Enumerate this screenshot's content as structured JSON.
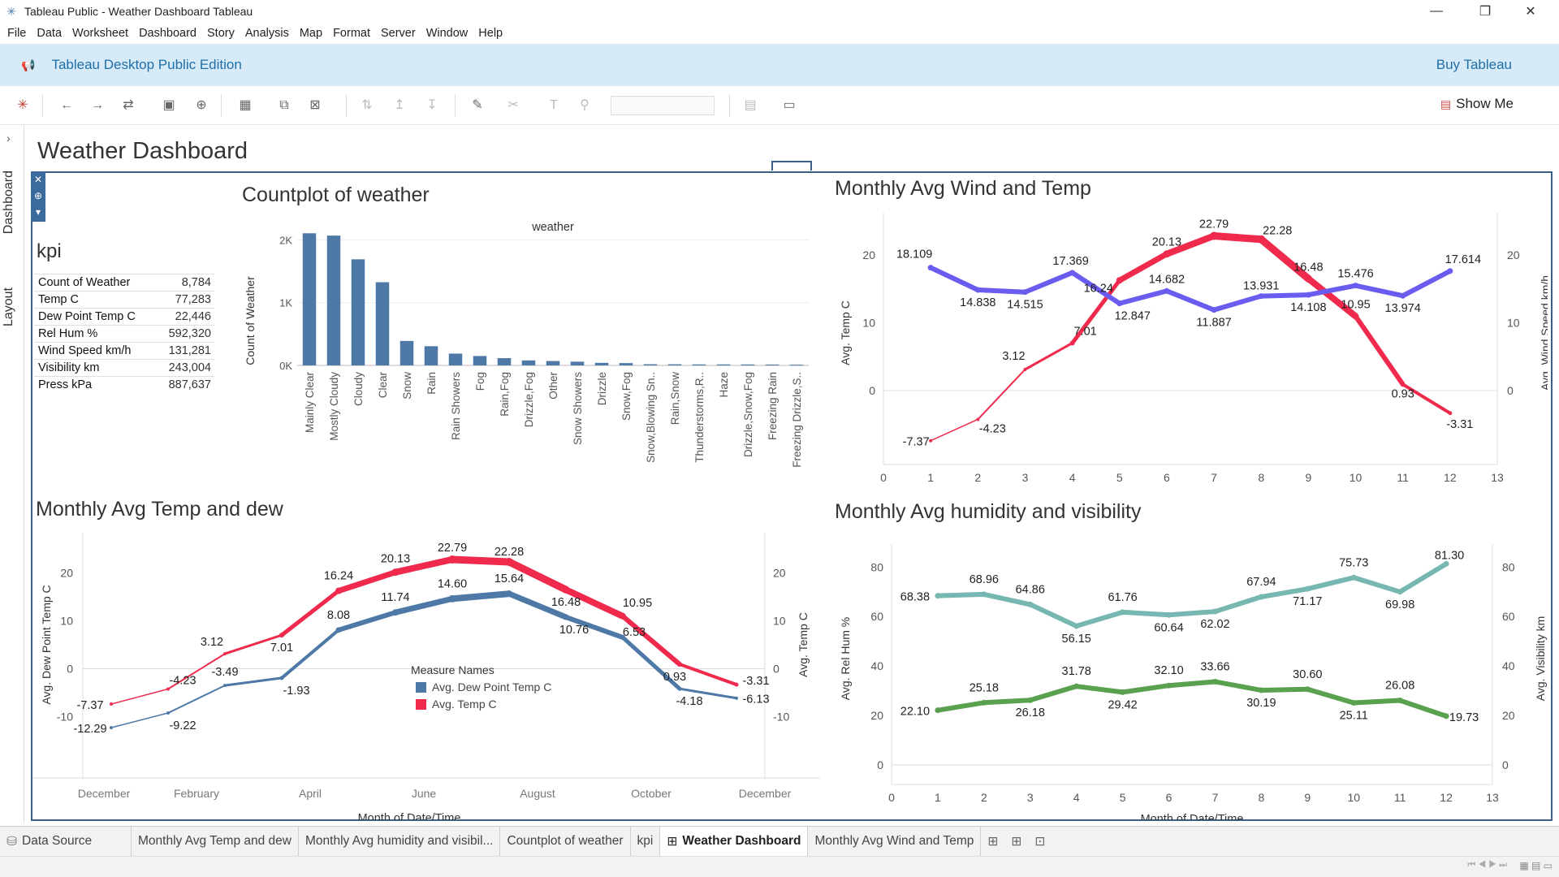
{
  "window": {
    "title": "Tableau Public - Weather Dashboard Tableau",
    "minimize": "—",
    "restore": "❐",
    "close": "✕"
  },
  "menu": [
    "File",
    "Data",
    "Worksheet",
    "Dashboard",
    "Story",
    "Analysis",
    "Map",
    "Format",
    "Server",
    "Window",
    "Help"
  ],
  "banner": {
    "edition": "Tableau Desktop Public Edition",
    "buy": "Buy Tableau"
  },
  "toolbar": {
    "show_me": "Show Me"
  },
  "side_tabs": {
    "dashboard": "Dashboard",
    "layout": "Layout"
  },
  "dashboard": {
    "title": "Weather Dashboard"
  },
  "kpi": {
    "title": "kpi",
    "rows": [
      {
        "label": "Count of Weather",
        "value": "8,784"
      },
      {
        "label": "Temp C",
        "value": "77,283"
      },
      {
        "label": "Dew Point Temp C",
        "value": "22,446"
      },
      {
        "label": "Rel Hum %",
        "value": "592,320"
      },
      {
        "label": "Wind Speed km/h",
        "value": "131,281"
      },
      {
        "label": "Visibility km",
        "value": "243,004"
      },
      {
        "label": "Press kPa",
        "value": "887,637"
      }
    ]
  },
  "chart_data": [
    {
      "id": "countplot",
      "type": "bar",
      "title": "Countplot of weather",
      "header": "weather",
      "ylabel": "Count of Weather",
      "ylim": [
        0,
        2200
      ],
      "yticks": [
        {
          "v": 0,
          "t": "0K"
        },
        {
          "v": 1000,
          "t": "1K"
        },
        {
          "v": 2000,
          "t": "2K"
        }
      ],
      "color": "#4e79a7",
      "categories": [
        "Mainly Clear",
        "Mostly Cloudy",
        "Cloudy",
        "Clear",
        "Snow",
        "Rain",
        "Rain Showers",
        "Fog",
        "Rain,Fog",
        "Drizzle,Fog",
        "Other",
        "Snow Showers",
        "Drizzle",
        "Snow,Fog",
        "Snow,Blowing Sn..",
        "Rain,Snow",
        "Thunderstorms,R..",
        "Haze",
        "Drizzle,Snow,Fog",
        "Freezing Rain",
        "Freezing Drizzle,S.."
      ],
      "values": [
        2106,
        2069,
        1691,
        1326,
        390,
        306,
        188,
        150,
        116,
        80,
        70,
        60,
        41,
        37,
        19,
        18,
        16,
        16,
        15,
        14,
        11
      ]
    },
    {
      "id": "windtemp",
      "type": "line",
      "title": "Monthly Avg Wind and Temp",
      "xlabel": "Month of Date/Time",
      "ylabel_left": "Avg. Temp C",
      "ylabel_right": "Avg. Wind Speed km/h",
      "xlim": [
        0,
        13
      ],
      "ylim": [
        -8,
        25
      ],
      "ticks_left": [
        0,
        10,
        20
      ],
      "ticks_right": [
        0,
        10,
        20
      ],
      "x": [
        1,
        2,
        3,
        4,
        5,
        6,
        7,
        8,
        9,
        10,
        11,
        12
      ],
      "series": [
        {
          "color": "#ef2a4d",
          "values": [
            -7.37,
            -4.23,
            3.12,
            7.01,
            16.24,
            20.13,
            22.79,
            22.28,
            16.48,
            10.95,
            0.93,
            -3.31
          ]
        },
        {
          "color": "#6b5cf0",
          "values": [
            18.109,
            14.838,
            14.515,
            17.369,
            12.847,
            14.682,
            11.887,
            13.931,
            14.108,
            15.476,
            13.974,
            17.614
          ]
        }
      ],
      "labels_temp": [
        "-7.37",
        "-4.23",
        "3.12",
        "7.01",
        "16.24",
        "20.13",
        "22.79",
        "22.28",
        "16.48",
        "10.95",
        "0.93",
        "-3.31"
      ],
      "labels_wind": [
        "18.109",
        "14.838",
        "14.515",
        "17.369",
        "12.847",
        "14.682",
        "11.887",
        "13.931",
        "14.108",
        "15.476",
        "13.974",
        "17.614"
      ]
    },
    {
      "id": "tempdew",
      "type": "line",
      "title": "Monthly Avg Temp and dew",
      "xlabel": "Month of Date/Time",
      "ylabel_left": "Avg. Dew Point Temp C",
      "ylabel_right": "Avg. Temp C",
      "ylim": [
        -16,
        26
      ],
      "ticks_left": [
        -10,
        0,
        10,
        20
      ],
      "ticks_right": [
        -10,
        0,
        10,
        20
      ],
      "x_ticks": [
        "December",
        "February",
        "April",
        "June",
        "August",
        "October",
        "December"
      ],
      "legend_title": "Measure Names",
      "series": [
        {
          "name": "Avg. Dew Point Temp C",
          "color": "#4e79a7",
          "values": [
            -12.29,
            -9.22,
            -3.49,
            -1.93,
            8.08,
            11.74,
            14.6,
            15.64,
            10.76,
            6.53,
            -4.18,
            -6.13
          ]
        },
        {
          "name": "Avg. Temp C",
          "color": "#ef2a4d",
          "values": [
            -7.37,
            -4.23,
            3.12,
            7.01,
            16.24,
            20.13,
            22.79,
            22.28,
            16.48,
            10.95,
            0.93,
            -3.31
          ]
        }
      ],
      "labels_dew": [
        "-12.29",
        "-9.22",
        "-3.49",
        "-1.93",
        "8.08",
        "11.74",
        "14.60",
        "15.64",
        "10.76",
        "6.53",
        "-4.18",
        "-6.13"
      ],
      "labels_temp": [
        "-7.37",
        "-4.23",
        "3.12",
        "7.01",
        "16.24",
        "20.13",
        "22.79",
        "22.28",
        "16.48",
        "10.95",
        "0.93",
        "-3.31"
      ]
    },
    {
      "id": "humvis",
      "type": "line",
      "title": "Monthly Avg humidity and visibility",
      "xlabel": "Month of Date/Time",
      "ylabel_left": "Avg. Rel Hum %",
      "ylabel_right": "Avg. Visibility km",
      "xlim": [
        0,
        13
      ],
      "ylim": [
        0,
        86
      ],
      "ticks_left": [
        0,
        20,
        40,
        60,
        80
      ],
      "ticks_right": [
        0,
        20,
        40,
        60,
        80
      ],
      "x": [
        1,
        2,
        3,
        4,
        5,
        6,
        7,
        8,
        9,
        10,
        11,
        12
      ],
      "series": [
        {
          "color": "#76b7b2",
          "values": [
            68.38,
            68.96,
            64.86,
            56.15,
            61.76,
            60.64,
            62.02,
            67.94,
            71.17,
            75.73,
            69.98,
            81.3
          ]
        },
        {
          "color": "#59a14f",
          "values": [
            22.1,
            25.18,
            26.18,
            31.78,
            29.42,
            32.1,
            33.66,
            30.19,
            30.6,
            25.11,
            26.08,
            19.73
          ]
        }
      ],
      "labels_hum": [
        "68.38",
        "68.96",
        "64.86",
        "56.15",
        "61.76",
        "60.64",
        "62.02",
        "67.94",
        "71.17",
        "75.73",
        "69.98",
        "81.30"
      ],
      "labels_vis": [
        "22.10",
        "25.18",
        "26.18",
        "31.78",
        "29.42",
        "32.10",
        "33.66",
        "30.19",
        "30.60",
        "25.11",
        "26.08",
        "19.73"
      ]
    }
  ],
  "tabs": [
    {
      "label": "Data Source",
      "icon": "database-icon"
    },
    {
      "label": "Monthly Avg Temp and dew"
    },
    {
      "label": "Monthly Avg humidity and visibil..."
    },
    {
      "label": "Countplot of weather"
    },
    {
      "label": "kpi"
    },
    {
      "label": "Weather Dashboard",
      "icon": "dashboard-icon",
      "active": true
    },
    {
      "label": "Monthly Avg Wind and Temp"
    }
  ]
}
